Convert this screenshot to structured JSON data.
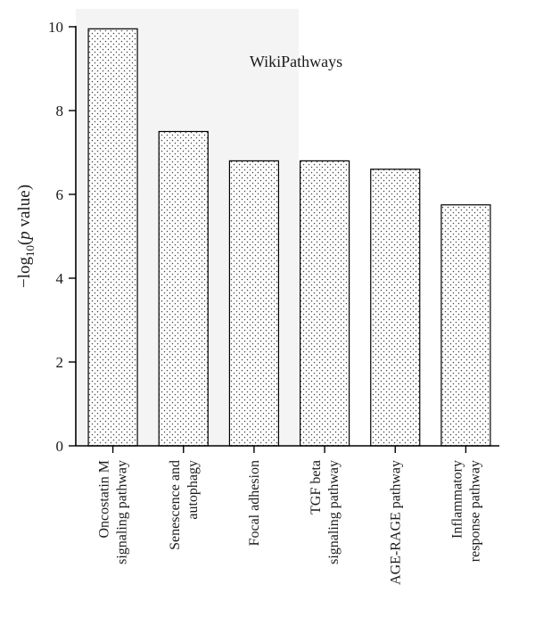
{
  "chart_data": {
    "type": "bar",
    "title": "WikiPathways",
    "ylabel": "−log₁₀(p value)",
    "ylabel_parts": {
      "prefix": "−log",
      "subscript": "10",
      "open": "(",
      "var": "p",
      "rest": " value)"
    },
    "xlabel": "",
    "ylim": [
      0,
      10
    ],
    "yticks": [
      0,
      2,
      4,
      6,
      8,
      10
    ],
    "categories": [
      [
        "Oncostatin M",
        "signaling pathway"
      ],
      [
        "Senescence and",
        "autophagy"
      ],
      [
        "Focal adhesion"
      ],
      [
        "TGF beta",
        "signaling pathway"
      ],
      [
        "AGE-RAGE pathway"
      ],
      [
        "Inflammatory",
        "response pathway"
      ]
    ],
    "values": [
      9.95,
      7.5,
      6.8,
      6.8,
      6.6,
      5.75
    ],
    "fill": "dotted pattern",
    "bar_edge_color": "#000000",
    "grid": false,
    "legend": "none"
  }
}
